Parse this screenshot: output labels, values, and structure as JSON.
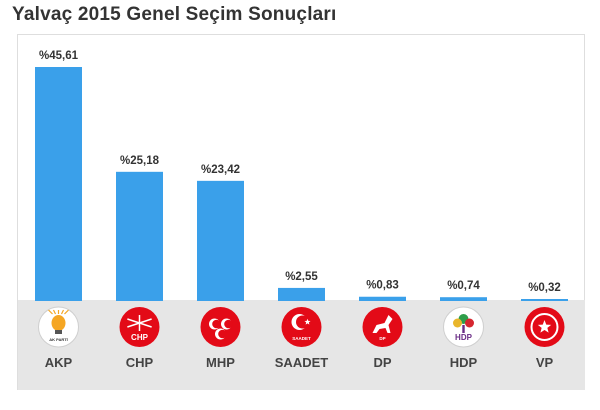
{
  "title": "Yalvaç 2015 Genel Seçim Sonuçları",
  "chart_data": {
    "type": "bar",
    "title": "Yalvaç 2015 Genel Seçim Sonuçları",
    "categories": [
      "AKP",
      "CHP",
      "MHP",
      "SAADET",
      "DP",
      "HDP",
      "VP"
    ],
    "values": [
      45.61,
      25.18,
      23.42,
      2.55,
      0.83,
      0.74,
      0.32
    ],
    "value_labels": [
      "%45,61",
      "%25,18",
      "%23,42",
      "%2,55",
      "%0,83",
      "%0,74",
      "%0,32"
    ],
    "logo_text": [
      "AK PARTİ",
      "CHP",
      "",
      "SAADET",
      "DP",
      "HDP",
      ""
    ],
    "ylim": [
      0,
      45.61
    ],
    "grid": false,
    "bar_color": "#3aa0ea"
  },
  "logos": [
    {
      "icon": "ak-parti-bulb-icon",
      "bg": "#ffffff",
      "fg": "#f5a623",
      "text_color": "#333333"
    },
    {
      "icon": "chp-six-arrows-icon",
      "bg": "#e30a17",
      "fg": "#ffffff",
      "text_color": "#ffffff"
    },
    {
      "icon": "mhp-three-crescents-icon",
      "bg": "#e30a17",
      "fg": "#ffffff",
      "text_color": "#ffffff"
    },
    {
      "icon": "saadet-crescent-star-icon",
      "bg": "#e30a17",
      "fg": "#ffffff",
      "text_color": "#ffffff"
    },
    {
      "icon": "dp-white-horse-icon",
      "bg": "#e30a17",
      "fg": "#ffffff",
      "text_color": "#ffffff"
    },
    {
      "icon": "hdp-tree-icon",
      "bg": "#ffffff",
      "fg": "#2e9e4a",
      "text_color": "#6a2c86"
    },
    {
      "icon": "vp-star-crescent-icon",
      "bg": "#e30a17",
      "fg": "#ffffff",
      "text_color": "#ffffff"
    }
  ]
}
